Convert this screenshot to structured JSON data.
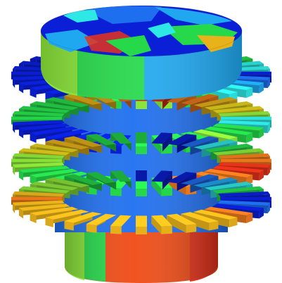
{
  "image": {
    "subject": "3d-rendered-cylindrical-stator-heatmap",
    "palette": {
      "blue": "#0a1fd6",
      "mid_blue": "#1e6ff0",
      "sky": "#1fa8f0",
      "cyan": "#2ee8e6",
      "green": "#25d94a",
      "lime": "#8ce63a",
      "yellow": "#e6d21c",
      "gold": "#e8b21a",
      "orange": "#f07a1c",
      "red": "#e8321a"
    },
    "tiers": [
      {
        "name": "tier-1",
        "colors": [
          "blue",
          "mid_blue",
          "sky",
          "cyan",
          "cyan",
          "green",
          "green",
          "lime",
          "lime",
          "green",
          "green",
          "green",
          "blue",
          "blue",
          "blue",
          "blue",
          "blue",
          "blue",
          "blue",
          "blue",
          "mid_blue",
          "sky",
          "mid_blue",
          "blue",
          "blue",
          "blue",
          "mid_blue",
          "sky",
          "green",
          "green",
          "cyan",
          "cyan"
        ]
      },
      {
        "name": "tier-2",
        "colors": [
          "cyan",
          "cyan",
          "green",
          "green",
          "lime",
          "green",
          "green",
          "green",
          "green",
          "blue",
          "blue",
          "blue",
          "blue",
          "blue",
          "blue",
          "blue",
          "green",
          "green",
          "green",
          "green",
          "green",
          "gold",
          "gold",
          "orange",
          "red",
          "red",
          "orange",
          "orange",
          "gold",
          "yellow",
          "yellow",
          "lime"
        ]
      },
      {
        "name": "tier-3",
        "colors": [
          "orange",
          "red",
          "red",
          "orange",
          "orange",
          "red",
          "orange",
          "green",
          "green",
          "green",
          "green",
          "green",
          "green",
          "green",
          "green",
          "lime",
          "lime",
          "lime",
          "yellow",
          "yellow",
          "gold",
          "gold",
          "green",
          "green",
          "green",
          "blue",
          "blue",
          "mid_blue",
          "cyan",
          "green",
          "lime",
          "orange"
        ]
      },
      {
        "name": "tier-4",
        "colors": [
          "blue",
          "mid_blue",
          "blue",
          "orange",
          "gold",
          "gold",
          "gold",
          "gold",
          "gold",
          "gold",
          "gold",
          "gold",
          "gold",
          "gold",
          "gold",
          "gold",
          "orange",
          "gold",
          "lime",
          "lime",
          "lime",
          "green",
          "green",
          "green",
          "blue",
          "blue",
          "blue",
          "mid_blue",
          "sky",
          "cyan",
          "green",
          "blue"
        ]
      }
    ]
  }
}
